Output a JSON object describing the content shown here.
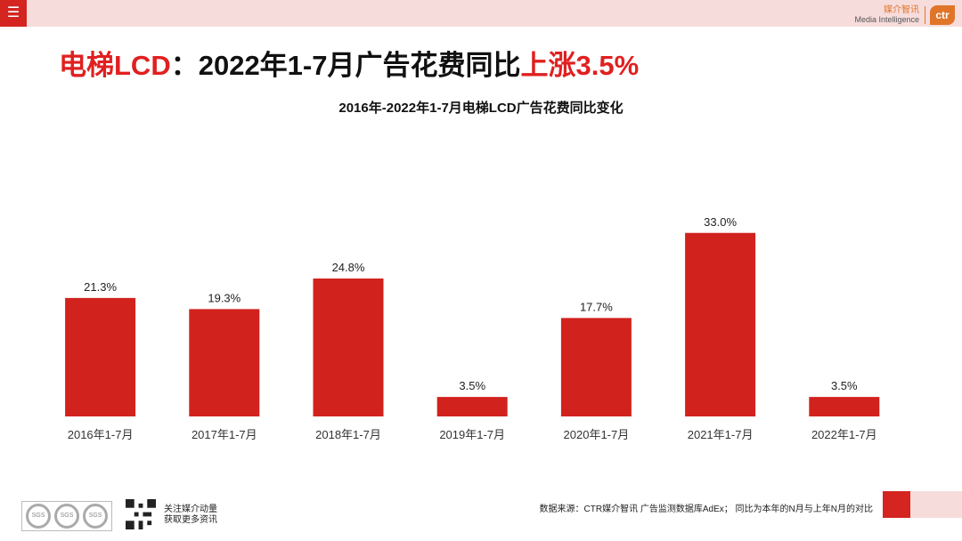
{
  "header": {
    "menu_icon": "menu-icon",
    "brand_cn": "媒介智讯",
    "brand_en": "Media Intelligence",
    "brand_logo": "ctr"
  },
  "headline": {
    "part1": "电梯LCD",
    "part2": "：2022年1-7月广告花费同比",
    "part3": "上涨3.5%"
  },
  "chart_data": {
    "type": "bar",
    "title": "2016年-2022年1-7月电梯LCD广告花费同比变化",
    "categories": [
      "2016年1-7月",
      "2017年1-7月",
      "2018年1-7月",
      "2019年1-7月",
      "2020年1-7月",
      "2021年1-7月",
      "2022年1-7月"
    ],
    "values": [
      21.3,
      19.3,
      24.8,
      3.5,
      17.7,
      33.0,
      3.5
    ],
    "value_labels": [
      "21.3%",
      "19.3%",
      "24.8%",
      "3.5%",
      "17.7%",
      "33.0%",
      "3.5%"
    ],
    "bar_color": "#d1221e",
    "ylim": [
      0,
      40
    ],
    "grid": false
  },
  "footer": {
    "source": "数据来源：CTR媒介智讯 广告监测数据库AdEx；  同比为本年的N月与上年N月的对比",
    "qr_line1": "关注媒介动量",
    "qr_line2": "获取更多资讯",
    "cert_labels": [
      "SGS",
      "SGS",
      "SGS"
    ]
  }
}
